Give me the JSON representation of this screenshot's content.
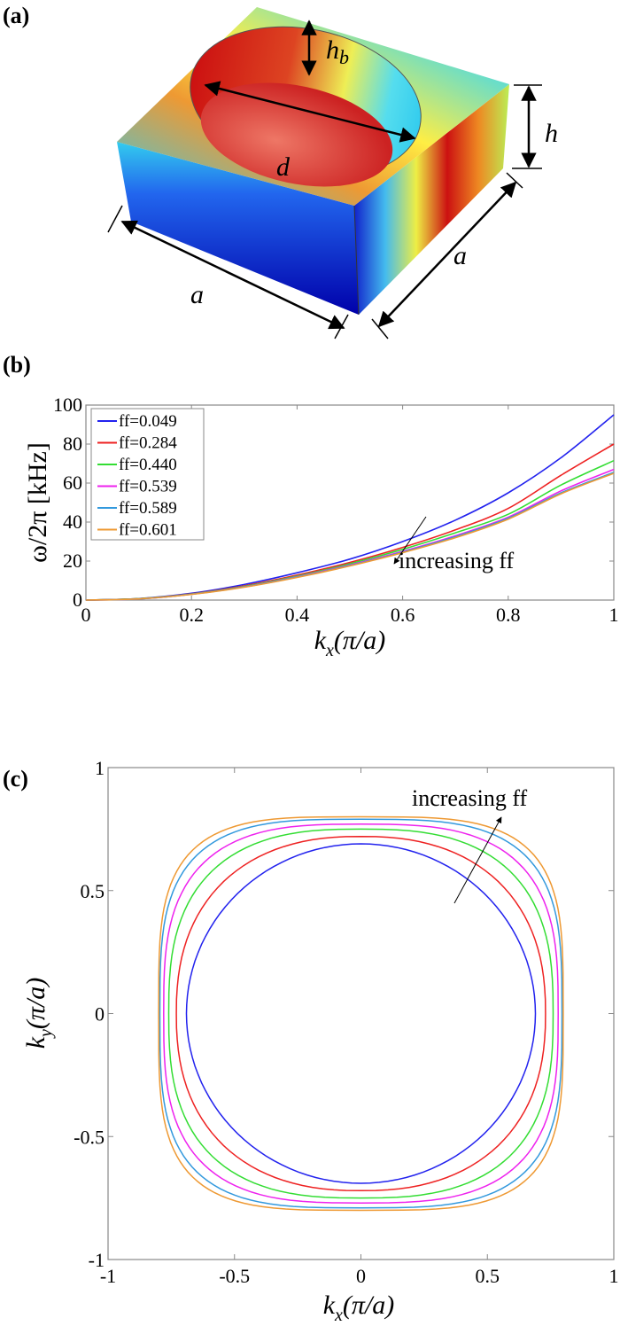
{
  "panels": {
    "a": {
      "label": "(a)",
      "dimension_labels": {
        "hb": "h",
        "hb_sub": "b",
        "d": "d",
        "h": "h",
        "a_front": "a",
        "a_side": "a"
      }
    },
    "b": {
      "label": "(b)"
    },
    "c": {
      "label": "(c)"
    }
  },
  "chart_data": [
    {
      "type": "line",
      "panel": "b",
      "xlabel": "k_x(π/a)",
      "xlabel_main": "k",
      "xlabel_sub": "x",
      "xlabel_rest": "(π/a)",
      "ylabel": "ω/2π [kHz]",
      "xlim": [
        0,
        1
      ],
      "ylim": [
        0,
        100
      ],
      "xticks": [
        "0",
        "0.2",
        "0.4",
        "0.6",
        "0.8",
        "1"
      ],
      "yticks": [
        "0",
        "20",
        "40",
        "60",
        "80",
        "100"
      ],
      "grid": false,
      "legend_placement": "top-left",
      "annotation": "increasing ff",
      "x": [
        0,
        0.1,
        0.2,
        0.3,
        0.4,
        0.5,
        0.6,
        0.7,
        0.8,
        0.9,
        1.0
      ],
      "series": [
        {
          "name": "ff=0.049",
          "color": "#2222ee",
          "values": [
            0,
            0.8,
            3.5,
            8,
            14,
            21,
            30,
            41,
            55,
            73,
            95
          ]
        },
        {
          "name": "ff=0.284",
          "color": "#ee2222",
          "values": [
            0,
            0.7,
            3.2,
            7.3,
            12.8,
            19.3,
            27,
            36,
            47,
            64,
            80
          ]
        },
        {
          "name": "ff=0.440",
          "color": "#33dd33",
          "values": [
            0,
            0.7,
            3.1,
            7,
            12.3,
            18.6,
            26,
            34.5,
            44,
            59,
            71.5
          ]
        },
        {
          "name": "ff=0.539",
          "color": "#ee22ee",
          "values": [
            0,
            0.6,
            3,
            6.8,
            12,
            18,
            25,
            33,
            42.5,
            56,
            67
          ]
        },
        {
          "name": "ff=0.589",
          "color": "#3399dd",
          "values": [
            0,
            0.6,
            3,
            6.7,
            11.8,
            17.7,
            24.6,
            32.5,
            42,
            55,
            65.5
          ]
        },
        {
          "name": "ff=0.601",
          "color": "#ee9933",
          "values": [
            0,
            0.6,
            2.9,
            6.6,
            11.6,
            17.5,
            24.3,
            32,
            41.5,
            54.5,
            65
          ]
        }
      ]
    },
    {
      "type": "line",
      "panel": "c",
      "xlabel": "k_x(π/a)",
      "xlabel_main": "k",
      "xlabel_sub": "x",
      "xlabel_rest": "(π/a)",
      "ylabel": "k_y(π/a)",
      "ylabel_main": "k",
      "ylabel_sub": "y",
      "ylabel_rest": "(π/a)",
      "xlim": [
        -1,
        1
      ],
      "ylim": [
        -1,
        1
      ],
      "xticks": [
        "-1",
        "-0.5",
        "0",
        "0.5",
        "1"
      ],
      "yticks": [
        "-1",
        "-0.5",
        "0",
        "0.5",
        "1"
      ],
      "grid": false,
      "annotation": "increasing ff",
      "series": [
        {
          "color": "#2222ee",
          "kx_extent": 0.69,
          "ky_extent": 0.69
        },
        {
          "color": "#ee2222",
          "kx_extent": 0.73,
          "ky_extent": 0.72
        },
        {
          "color": "#33dd33",
          "kx_extent": 0.76,
          "ky_extent": 0.75
        },
        {
          "color": "#ee22ee",
          "kx_extent": 0.78,
          "ky_extent": 0.77
        },
        {
          "color": "#3399dd",
          "kx_extent": 0.795,
          "ky_extent": 0.79
        },
        {
          "color": "#ee9933",
          "kx_extent": 0.8,
          "ky_extent": 0.8
        }
      ]
    }
  ]
}
